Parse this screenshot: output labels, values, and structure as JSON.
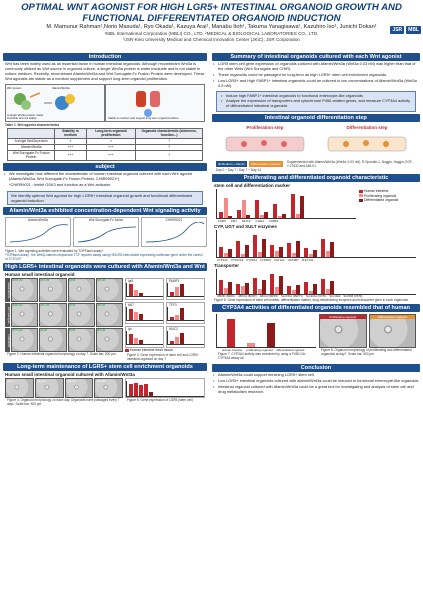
{
  "header": {
    "title_line1": "OPTIMAL WNT AGONIST FOR HIGH LGR5+ INTESTINAL ORGANOID GROWTH AND",
    "title_line2": "FUNCTIONAL DIFFERENTIATED ORGANOID INDUCTION",
    "authors": "M. Mamunur Rahman¹,Norio Masuda¹, Ryo Okada¹, Kazuya Arai¹, Manabu Itoh¹, Takuma Yanagisawa¹, Kazuhiro Iso¹, Junichi Dokan¹",
    "affil1": "¹MBL International Corporation (MBLI) CO., LTD. ²MEDICAL & BIOLOGICAL LABORATORIES CO., LTD.",
    "affil2": "³JSR-Keio University Medical and Chemical Innovation Center (JKiC); JSR Corporation",
    "logos": [
      "JSR",
      "MBL"
    ]
  },
  "intro": {
    "heading": "Introduction",
    "text": "Wnt has been widely used as an essential factor in human intestinal organoids. Although recombinant Wnt3a is commonly utilized as Wnt source in organoid culture, a single Wnt3a protein is water insoluble and is not stable in culture medium. Recently, recombinant Afamin/Wnt3a and Wnt Surrogate-Fc Fusion Protein were developed. These Wnt agonists are stable as a medium supplement and support long-term organoid proliferation.",
    "diagram_labels": [
      "Wnt protein",
      "Fatty Acid (Palmitic acid)",
      "Afamin/Wnt3a",
      "A single Wnt3a protein: water insoluble and not stable",
      "Stable in medium and support long-term organoid culture"
    ],
    "table_title": "Table 1. Wnt agonist characteristics",
    "table_headers": [
      "",
      "Stability in medium",
      "Long-term organoid proliferation",
      "Organoid characteristic (stemness, function...)"
    ],
    "table_rows": [
      [
        "A single Wnt3a protein",
        "×",
        "×",
        "?"
      ],
      [
        "Afamin/Wnt3a",
        "+++",
        "+++",
        "?"
      ],
      [
        "Wnt Surrogate-Fc Fusion Protein",
        "+++",
        "+++",
        "?"
      ]
    ]
  },
  "subject": {
    "heading": "subject",
    "bullet1": "We investigate how different the characteristic of human intestinal organoid cultured with each Wnt agonist (Afamin/Wnt3a, Wnt Surrogate-Fc Fusion Protein, CHIR99021*).",
    "note": "*CHIR99021 : inhibit GSK3 and function as a Wnt activator",
    "highlight": "We identify optimal Wnt agonist for high LGR5+ intestinal organoid growth and functional differentiated organoid induction"
  },
  "wnt_activity": {
    "heading": "Afamin/Wnt3a exhibited concentration-dependent Wnt signaling activity",
    "panels": [
      "Afamin/Wnt3a",
      "Wnt Surrogate-Fc fusion",
      "CHIR99021"
    ],
    "ylabel": "Relative luciferase activity",
    "caption1": "Figure 1. Wnt signaling activities were evaluated by TOPFlash assay*.",
    "caption2": "*TOPflash assay : the Wnt/β-catenin-responsive TCF reporter assay using HEK293 cells stable expressing luciferase gene under the control of TCF/LEF"
  },
  "lgr5": {
    "heading": "High LGR5+ intestinal organoids were cultured with Afamin/Wnt3a and Wnt Surrogate",
    "sub": "Human small intestinal organoid",
    "row_labels": [
      "Afamin/Wnt3a",
      "Wnt Surrogate",
      "CHIR99021"
    ],
    "row1_conc": [
      "0.03 nM",
      "0.1 nM",
      "1 nM",
      "10 nM"
    ],
    "row2_conc": [
      "0.06 nM",
      "0.1 nM",
      "1 nM",
      "10 nM"
    ],
    "row3_conc": [
      "0.75 μM",
      "3 μM",
      "6 μM",
      "12 μM"
    ],
    "genes": [
      "lgr5",
      "PAMP1",
      "ki67",
      "TFF3",
      "lyz",
      "MUC2",
      "Dvp"
    ],
    "caption_left": "Figure 2. Human intestinal organoid morphology on day 7. Scale bar, 500 μm",
    "caption_right": "Figure 3. Gene expression of stem cell and LGR5+ intestinal organoid on day 7",
    "legend": "Human intestine fresh tissue"
  },
  "longterm": {
    "heading": "Long-term maintenance of LGR5+ stem cell enrichment organoids",
    "sub": "Human small intestinal organoid cultured with Afamin/Wnt3a",
    "days": [
      "Day 7",
      "Day 14",
      "Day 42",
      "Day 48"
    ],
    "caption_left": "Figure 4. Organoid morphology on each day. Organoids were passaged every 7 days. Scale bar, 500 μm",
    "caption_right": "Figure 5. Gene expression of LGR5 (stem cell)"
  },
  "summary": {
    "heading": "Summary of intestinal organoids cultured with each Wnt agonist",
    "b1": "LGR5 stem cell gene expression of organoids cultured with Afamin/Wnt3a (Wnt3a 0.03 nM) was higher than that of the other Wnts (Wnt Surrogate and CHIR).",
    "b2": "These organoids could be passaged for long-term as high LGR5+ stem cell enrichment organoids.",
    "b3": "Low LGR5+ and High FABP1+ intestinal organoids could be cultured in low concentrations of Afamin/Wnt3a (Wnt3a 0.5 nM).",
    "box1": "Induce high FABP1+ intestinal organoids to functional enterocyte-like organoids",
    "box2": "Analyze the expression of transporters and cytochrome P450-related genes, and measure CYP3A4 activity of differentiated intestinal organoids"
  },
  "diffstep": {
    "heading": "Intestinal organoid differentiation step",
    "step1": "Proliferation step",
    "step2": "Differentiation step",
    "label1": "IE Medium + Afamin",
    "label2": "Differentiation medium",
    "desc": "Supplemented with Afamin/Wnt3a (Wnt3a: 0.03 nM), R-Spondin-1, Noggin, Noggin, EGF, Y-27632 and A83-01",
    "days": "Day 0 ~ Day 7 / Day 7 ~ Day 14"
  },
  "prolif_diff": {
    "heading": "Proliferating and differentiated organoid characteristic",
    "sub1": "stem cell and differentiation marker",
    "genes1": [
      "LGR5",
      "KI67",
      "MUC2",
      "CHGA",
      "FABP1"
    ],
    "legend": [
      "Human intestine",
      "Proliferating organoid",
      "Differentiated organoid"
    ],
    "sub2": "CYP, UGT and SULT enzymes",
    "genes2": [
      "CYP1A1",
      "CYP2C19",
      "CYP3A4",
      "CYP2D6",
      "UGT1A1",
      "UGT2B7",
      "SULT1A1"
    ],
    "sub3": "Transporter",
    "genes3": [
      "ABCB1 (MDR1)",
      "ABCG2 (BCRP)",
      "ABCC2 (MRP2)",
      "SLC15A1 (PEPT1)",
      "SLC22A1 (OCT1)",
      "SLC10A2",
      "SLC51B (OSTβ)"
    ],
    "ylabel": "Relative expression",
    "caption": "Figure 6. Gene expression of stem cell marker, differentiation marker, drug-metabolizing enzymes and transporter gene in each organoids."
  },
  "cyp3a4": {
    "heading": "CYP3A4 activities of differentiated organoids resembled that of human intestinal cells",
    "bars": [
      "Human intestine",
      "proliferating organoid",
      "differentiated organoid"
    ],
    "ylabel": "CYP3A4 activity",
    "caption_left": "Figure 7. CYP3A4 activity was examined by using a P450-Glo CYP3A4 assay kit.",
    "panels": [
      "Proliferating organoid",
      "Differentiated organoid"
    ],
    "caption_right": "Figure 8. Organoid morphology of proliferating and differentiated organoids at day7. Scale bar, 500 μm"
  },
  "conclusion": {
    "heading": "Conclusion",
    "b1": "Afamin/Wnt3a could support enriching LGR5+ stem cell.",
    "b2": "Low LGR5+ intestinal organoids cultured with afamin/Wnt3a could be induced to functional enterocyte-like organoids.",
    "b3": "Intestinal organoid cultured with Afamin/Wnt3a could be a great tool for investigating and analysis of stem cell and drug metabolism research."
  },
  "colors": {
    "section": "#1f4f8c",
    "bar_red": "#c0262b",
    "bar_pink": "#f28c8c",
    "bar_dark": "#8b1a1a"
  }
}
